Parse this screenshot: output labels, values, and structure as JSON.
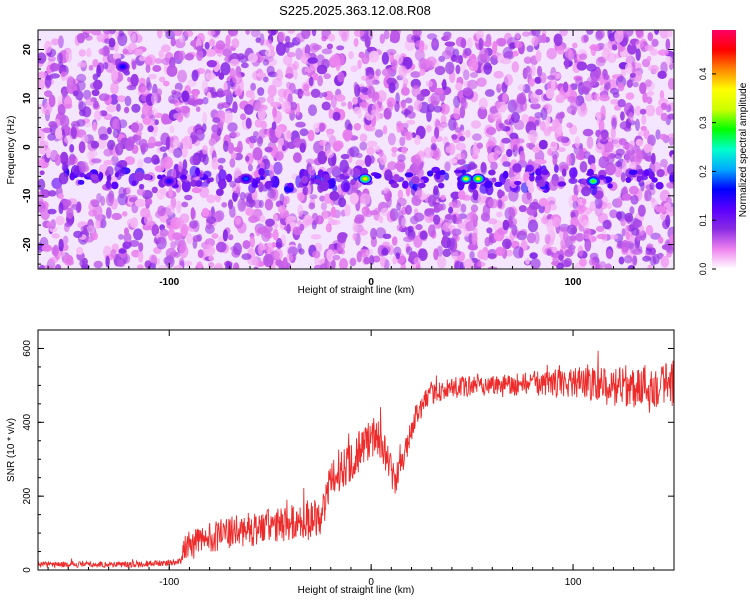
{
  "title": "S225.2025.363.12.08.R08",
  "colors": {
    "snr_line": "#ee2b2b",
    "colorbar_stops": [
      "#ffffff",
      "#ee82ee",
      "#8a2be2",
      "#5a00ff",
      "#0000ff",
      "#00aaff",
      "#00ffcc",
      "#00ff00",
      "#ccff00",
      "#ffff00",
      "#ff8800",
      "#ff0000",
      "#ff0066"
    ]
  },
  "chart_data": [
    {
      "type": "heatmap",
      "xlabel": "Height of straight line (km)",
      "ylabel": "Frequency (Hz)",
      "xlim": [
        -165,
        150
      ],
      "ylim": [
        -25,
        24
      ],
      "x_ticks": [
        -100,
        0,
        100
      ],
      "y_ticks": [
        -20,
        -10,
        0,
        10,
        20
      ],
      "colorbar": {
        "label": "Normalized spectral amplitude",
        "range": [
          0,
          0.49
        ],
        "ticks": [
          "0.0",
          "0.1",
          "0.2",
          "0.3",
          "0.4"
        ]
      },
      "band_frequency": -6.5,
      "hotspots": [
        {
          "x": -3,
          "y": -6.5,
          "amp": 0.38
        },
        {
          "x": 47,
          "y": -6.5,
          "amp": 0.33
        },
        {
          "x": 53,
          "y": -6.5,
          "amp": 0.36
        },
        {
          "x": 110,
          "y": -7,
          "amp": 0.3
        },
        {
          "x": -62,
          "y": -6.5,
          "amp": 0.18
        },
        {
          "x": -100,
          "y": -7,
          "amp": 0.15
        },
        {
          "x": -123,
          "y": 16.5,
          "amp": 0.16
        }
      ]
    },
    {
      "type": "line",
      "xlabel": "Height of straight line (km)",
      "ylabel": "SNR (10 * v/v)",
      "xlim": [
        -165,
        150
      ],
      "ylim": [
        0,
        650
      ],
      "x_ticks": [
        -100,
        0,
        100
      ],
      "y_ticks": [
        0,
        200,
        400,
        600
      ],
      "trend": [
        [
          -165,
          15
        ],
        [
          -120,
          15
        ],
        [
          -96,
          20
        ],
        [
          -92,
          60
        ],
        [
          -80,
          90
        ],
        [
          -60,
          110
        ],
        [
          -40,
          125
        ],
        [
          -25,
          150
        ],
        [
          -18,
          260
        ],
        [
          -10,
          300
        ],
        [
          -5,
          330
        ],
        [
          3,
          370
        ],
        [
          12,
          240
        ],
        [
          16,
          300
        ],
        [
          22,
          420
        ],
        [
          30,
          480
        ],
        [
          50,
          500
        ],
        [
          80,
          505
        ],
        [
          100,
          510
        ],
        [
          120,
          495
        ],
        [
          150,
          505
        ]
      ],
      "noise_amplitude": [
        [
          -165,
          8
        ],
        [
          -96,
          8
        ],
        [
          -92,
          40
        ],
        [
          -40,
          50
        ],
        [
          -25,
          55
        ],
        [
          -10,
          60
        ],
        [
          5,
          55
        ],
        [
          20,
          30
        ],
        [
          60,
          28
        ],
        [
          100,
          40
        ],
        [
          130,
          60
        ],
        [
          150,
          65
        ]
      ]
    }
  ]
}
